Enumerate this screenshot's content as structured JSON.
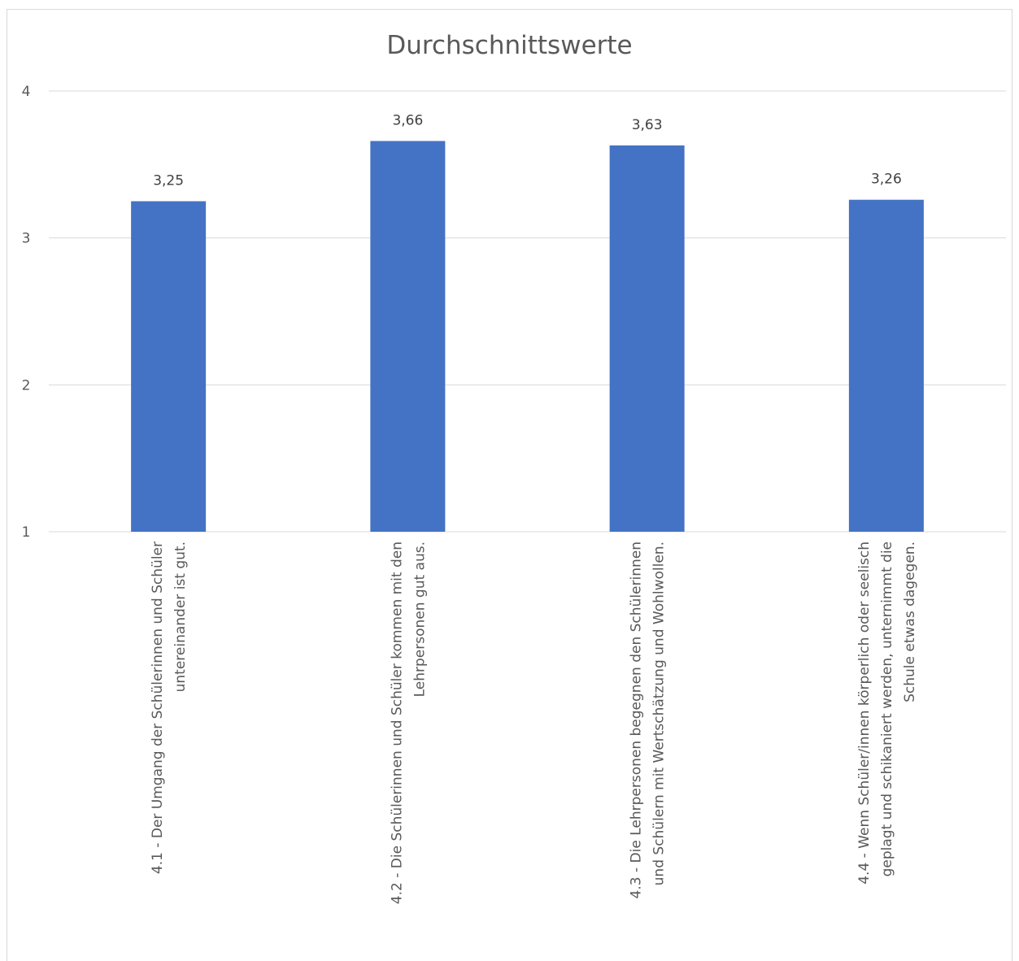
{
  "chart_data": {
    "type": "bar",
    "title": "Durchschnittswerte",
    "xlabel": "",
    "ylabel": "",
    "ylim": [
      1,
      4
    ],
    "yticks": [
      "1",
      "2",
      "3",
      "4"
    ],
    "grid": true,
    "legend": "none",
    "bar_color": "#4472c4",
    "categories": [
      [
        "4.1 - Der Umgang der Schülerinnen und Schüler",
        "untereinander ist gut."
      ],
      [
        "4.2 - Die Schülerinnen und Schüler kommen mit den",
        "Lehrpersonen gut aus."
      ],
      [
        "4.3 - Die Lehrpersonen begegnen den Schülerinnen",
        "und Schülern mit Wertschätzung und Wohlwollen."
      ],
      [
        "4.4 - Wenn Schüler/innen körperlich oder seelisch",
        "geplagt und schikaniert werden, unternimmt die",
        "Schule etwas dagegen."
      ]
    ],
    "values": [
      3.25,
      3.66,
      3.63,
      3.26
    ],
    "value_labels": [
      "3,25",
      "3,66",
      "3,63",
      "3,26"
    ]
  }
}
